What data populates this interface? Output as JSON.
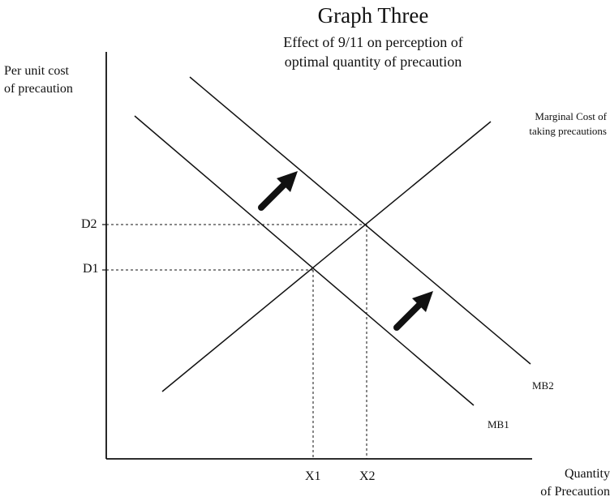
{
  "title": "Graph Three",
  "subtitle": "Effect of 9/11 on perception of\noptimal quantity of precaution",
  "y_axis_label": "Per unit cost\nof precaution",
  "x_axis_label": "Quantity\nof Precaution",
  "curves": {
    "marginal_cost": "Marginal Cost of\ntaking precautions",
    "mb1": "MB1",
    "mb2": "MB2"
  },
  "y_ticks": {
    "d1": "D1",
    "d2": "D2"
  },
  "x_ticks": {
    "x1": "X1",
    "x2": "X2"
  }
}
